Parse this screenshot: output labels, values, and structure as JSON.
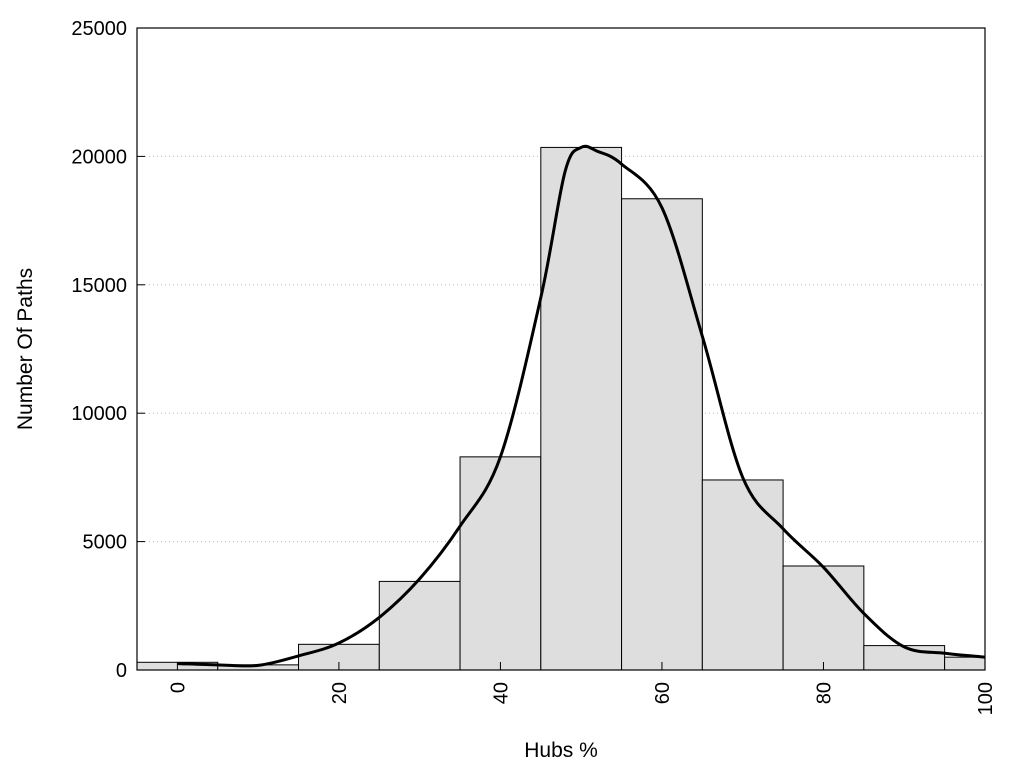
{
  "chart_data": {
    "type": "bar",
    "title": "",
    "xlabel": "Hubs %",
    "ylabel": "Number Of Paths",
    "xlim": [
      -5,
      100
    ],
    "ylim": [
      0,
      25000
    ],
    "xticks": [
      0,
      20,
      40,
      60,
      80,
      100
    ],
    "yticks": [
      0,
      5000,
      10000,
      15000,
      20000,
      25000
    ],
    "bin_width": 10,
    "bins": [
      {
        "center": 0,
        "value": 300
      },
      {
        "center": 10,
        "value": 200
      },
      {
        "center": 20,
        "value": 1000
      },
      {
        "center": 30,
        "value": 3450
      },
      {
        "center": 40,
        "value": 8300
      },
      {
        "center": 50,
        "value": 20350
      },
      {
        "center": 60,
        "value": 18350
      },
      {
        "center": 70,
        "value": 7400
      },
      {
        "center": 80,
        "value": 4050
      },
      {
        "center": 90,
        "value": 950
      },
      {
        "center": 100,
        "value": 500
      }
    ],
    "curve": {
      "x": [
        0,
        5,
        10,
        15,
        20,
        25,
        30,
        35,
        40,
        45,
        48,
        50,
        52,
        55,
        60,
        65,
        70,
        75,
        80,
        85,
        90,
        95,
        100
      ],
      "y": [
        250,
        200,
        180,
        550,
        1050,
        2050,
        3550,
        5600,
        8300,
        14500,
        19400,
        20350,
        20200,
        19700,
        18000,
        13000,
        7500,
        5500,
        4000,
        2200,
        900,
        650,
        500
      ]
    },
    "grid": {
      "y": true,
      "style": "dotted"
    },
    "colors": {
      "bar_fill": "#dedede",
      "bar_stroke": "#000000",
      "curve": "#000000"
    }
  }
}
